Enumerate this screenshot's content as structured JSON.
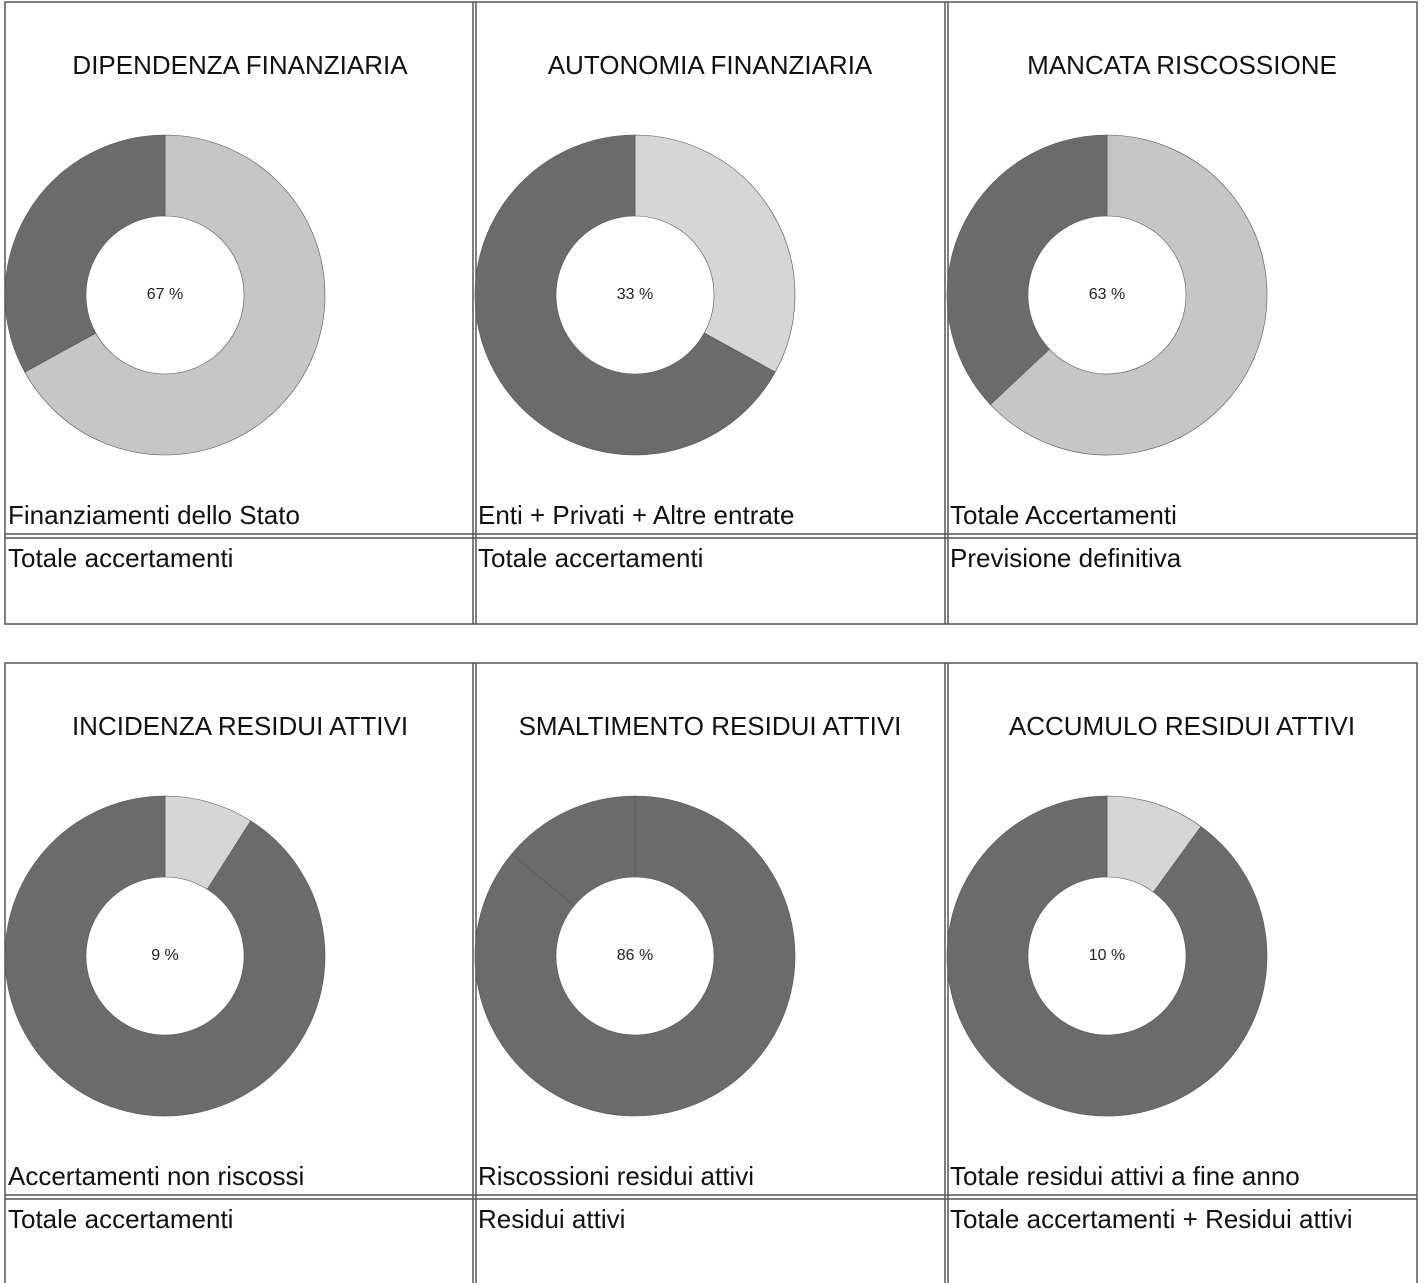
{
  "chart_data": [
    {
      "type": "donut",
      "title": "DIPENDENZA FINANZIARIA",
      "values": [
        67
      ],
      "value_labels": [
        "67 %"
      ],
      "colors": [
        "#c6c6c6",
        "#6b6b6b"
      ],
      "numerator": "Finanziamenti dello Stato",
      "denominator": "Totale accertamenti"
    },
    {
      "type": "donut",
      "title": "AUTONOMIA FINANZIARIA",
      "values": [
        33
      ],
      "value_labels": [
        "33 %"
      ],
      "colors": [
        "#d6d6d6",
        "#6b6b6b"
      ],
      "numerator": "Enti + Privati + Altre entrate",
      "denominator": "Totale accertamenti"
    },
    {
      "type": "donut",
      "title": "MANCATA RISCOSSIONE",
      "values": [
        63
      ],
      "value_labels": [
        "63 %"
      ],
      "colors": [
        "#c6c6c6",
        "#6b6b6b"
      ],
      "numerator": "Totale Accertamenti",
      "denominator": "Previsione definitiva"
    },
    {
      "type": "donut",
      "title": "INCIDENZA RESIDUI ATTIVI",
      "values": [
        9
      ],
      "value_labels": [
        "9 %"
      ],
      "colors": [
        "#d6d6d6",
        "#6b6b6b"
      ],
      "numerator": "Accertamenti non riscossi",
      "denominator": "Totale accertamenti"
    },
    {
      "type": "donut",
      "title": "SMALTIMENTO RESIDUI ATTIVI",
      "values": [
        86
      ],
      "value_labels": [
        "86 %"
      ],
      "colors": [
        "#6b6b6b",
        "#6b6b6b"
      ],
      "numerator": "Riscossioni residui attivi",
      "denominator": "Residui attivi"
    },
    {
      "type": "donut",
      "title": "ACCUMULO RESIDUI ATTIVI",
      "values": [
        10
      ],
      "value_labels": [
        "10 %"
      ],
      "colors": [
        "#d6d6d6",
        "#6b6b6b"
      ],
      "numerator": "Totale residui attivi a fine anno",
      "denominator": "Totale accertamenti + Residui attivi"
    }
  ]
}
